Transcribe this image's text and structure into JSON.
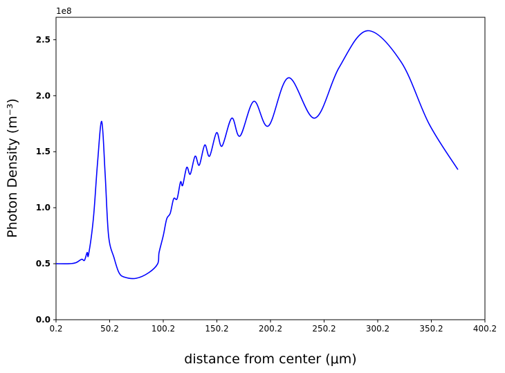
{
  "chart_data": {
    "type": "line",
    "x_label": "distance from center (μm)",
    "y_label": "Photon Density (m⁻³)",
    "y_offset_label": "1e8",
    "x": [
      0.2,
      12.5,
      18.9,
      24.1,
      26.7,
      29.2,
      30.5,
      35,
      38.9,
      42.8,
      46,
      49.2,
      54.4,
      58.9,
      64.1,
      75,
      86.7,
      95,
      96.3,
      100.2,
      103.4,
      106.7,
      109.9,
      113.1,
      116.3,
      118.3,
      122.1,
      125.4,
      129.9,
      133.8,
      138.9,
      143.4,
      149.9,
      155,
      164.1,
      171.8,
      184.7,
      198.3,
      217,
      241.5,
      264.1,
      290.5,
      322.1,
      348,
      375
    ],
    "series": [
      {
        "color": "#0000ff",
        "values": [
          0.5,
          0.5,
          0.51,
          0.54,
          0.53,
          0.6,
          0.58,
          0.9,
          1.4,
          1.77,
          1.3,
          0.75,
          0.55,
          0.42,
          0.38,
          0.37,
          0.42,
          0.5,
          0.6,
          0.75,
          0.9,
          0.95,
          1.08,
          1.08,
          1.23,
          1.2,
          1.36,
          1.3,
          1.46,
          1.38,
          1.56,
          1.46,
          1.67,
          1.55,
          1.8,
          1.64,
          1.95,
          1.73,
          2.16,
          1.8,
          2.25,
          2.58,
          2.3,
          1.75,
          1.34
        ]
      }
    ],
    "xlim": [
      0.2,
      400.2
    ],
    "xticks": [
      0.2,
      50.2,
      100.2,
      150.2,
      200.2,
      250.2,
      300.2,
      350.2,
      400.2
    ],
    "ylim": [
      0,
      2.7
    ],
    "yticks": [
      {
        "value": 0,
        "label": "0.0"
      },
      0.5,
      {
        "value": 1,
        "label": "1.0"
      },
      1.5,
      {
        "value": 2,
        "label": "2.0"
      },
      2.5
    ]
  }
}
